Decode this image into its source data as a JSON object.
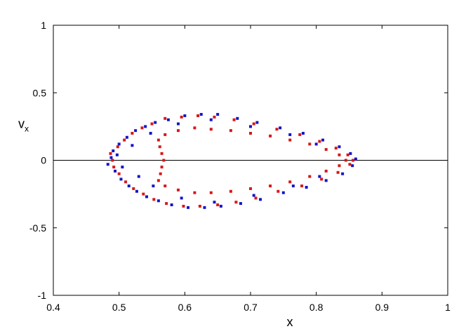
{
  "chart_data": {
    "type": "scatter",
    "title": "",
    "xlabel": "x",
    "ylabel": {
      "main": "v",
      "sub": "x"
    },
    "xlim": [
      0.4,
      1.0
    ],
    "ylim": [
      -1.0,
      1.0
    ],
    "xticks": [
      "0.4",
      "0.5",
      "0.6",
      "0.7",
      "0.8",
      "0.9",
      "1"
    ],
    "yticks": [
      "-1",
      "-0.5",
      "0",
      "0.5",
      "1"
    ],
    "grid": false,
    "reference_line": {
      "y": 0
    },
    "series": [
      {
        "color": "#1515c8",
        "points": [
          [
            0.488,
            0.02
          ],
          [
            0.483,
            -0.03
          ],
          [
            0.491,
            0.07
          ],
          [
            0.494,
            -0.08
          ],
          [
            0.5,
            0.12
          ],
          [
            0.503,
            -0.14
          ],
          [
            0.512,
            0.17
          ],
          [
            0.515,
            -0.19
          ],
          [
            0.525,
            0.22
          ],
          [
            0.527,
            -0.23
          ],
          [
            0.54,
            0.25
          ],
          [
            0.542,
            -0.27
          ],
          [
            0.555,
            0.28
          ],
          [
            0.56,
            -0.3
          ],
          [
            0.575,
            0.3
          ],
          [
            0.58,
            -0.33
          ],
          [
            0.6,
            0.33
          ],
          [
            0.605,
            -0.35
          ],
          [
            0.625,
            0.34
          ],
          [
            0.63,
            -0.35
          ],
          [
            0.65,
            0.34
          ],
          [
            0.655,
            -0.34
          ],
          [
            0.68,
            0.31
          ],
          [
            0.685,
            -0.32
          ],
          [
            0.71,
            0.28
          ],
          [
            0.715,
            -0.29
          ],
          [
            0.745,
            0.24
          ],
          [
            0.75,
            -0.24
          ],
          [
            0.78,
            0.2
          ],
          [
            0.785,
            -0.2
          ],
          [
            0.81,
            0.15
          ],
          [
            0.815,
            -0.15
          ],
          [
            0.835,
            0.1
          ],
          [
            0.84,
            -0.1
          ],
          [
            0.852,
            0.05
          ],
          [
            0.855,
            -0.04
          ],
          [
            0.86,
            0.01
          ],
          [
            0.497,
            0.04
          ],
          [
            0.505,
            -0.05
          ],
          [
            0.52,
            0.11
          ],
          [
            0.53,
            -0.12
          ],
          [
            0.548,
            0.2
          ],
          [
            0.552,
            -0.19
          ],
          [
            0.59,
            0.27
          ],
          [
            0.595,
            -0.28
          ],
          [
            0.64,
            0.3
          ],
          [
            0.645,
            -0.31
          ],
          [
            0.7,
            0.25
          ],
          [
            0.705,
            -0.26
          ],
          [
            0.76,
            0.19
          ],
          [
            0.765,
            -0.19
          ],
          [
            0.8,
            0.12
          ],
          [
            0.805,
            -0.12
          ]
        ]
      },
      {
        "color": "#d81818",
        "points": [
          [
            0.49,
            0.0
          ],
          [
            0.487,
            0.05
          ],
          [
            0.492,
            -0.05
          ],
          [
            0.498,
            0.1
          ],
          [
            0.5,
            -0.1
          ],
          [
            0.508,
            0.15
          ],
          [
            0.51,
            -0.16
          ],
          [
            0.52,
            0.2
          ],
          [
            0.522,
            -0.21
          ],
          [
            0.535,
            0.24
          ],
          [
            0.537,
            -0.25
          ],
          [
            0.55,
            0.27
          ],
          [
            0.553,
            -0.29
          ],
          [
            0.57,
            0.31
          ],
          [
            0.572,
            -0.32
          ],
          [
            0.595,
            0.32
          ],
          [
            0.598,
            -0.34
          ],
          [
            0.62,
            0.33
          ],
          [
            0.623,
            -0.34
          ],
          [
            0.645,
            0.32
          ],
          [
            0.65,
            -0.33
          ],
          [
            0.675,
            0.3
          ],
          [
            0.678,
            -0.31
          ],
          [
            0.705,
            0.27
          ],
          [
            0.708,
            -0.28
          ],
          [
            0.74,
            0.23
          ],
          [
            0.742,
            -0.23
          ],
          [
            0.775,
            0.19
          ],
          [
            0.778,
            -0.19
          ],
          [
            0.805,
            0.14
          ],
          [
            0.808,
            -0.14
          ],
          [
            0.83,
            0.09
          ],
          [
            0.833,
            -0.09
          ],
          [
            0.848,
            0.04
          ],
          [
            0.851,
            -0.03
          ],
          [
            0.856,
            0.0
          ],
          [
            0.56,
            0.15
          ],
          [
            0.562,
            0.1
          ],
          [
            0.565,
            0.05
          ],
          [
            0.568,
            0.0
          ],
          [
            0.565,
            -0.05
          ],
          [
            0.563,
            -0.1
          ],
          [
            0.56,
            -0.15
          ],
          [
            0.57,
            0.19
          ],
          [
            0.57,
            -0.19
          ],
          [
            0.59,
            0.22
          ],
          [
            0.615,
            0.24
          ],
          [
            0.64,
            0.23
          ],
          [
            0.67,
            0.22
          ],
          [
            0.7,
            0.2
          ],
          [
            0.73,
            0.18
          ],
          [
            0.76,
            0.15
          ],
          [
            0.79,
            0.12
          ],
          [
            0.815,
            0.08
          ],
          [
            0.835,
            0.04
          ],
          [
            0.845,
            0.0
          ],
          [
            0.59,
            -0.22
          ],
          [
            0.615,
            -0.24
          ],
          [
            0.64,
            -0.24
          ],
          [
            0.67,
            -0.23
          ],
          [
            0.7,
            -0.21
          ],
          [
            0.73,
            -0.19
          ],
          [
            0.76,
            -0.16
          ],
          [
            0.79,
            -0.12
          ],
          [
            0.815,
            -0.08
          ],
          [
            0.835,
            -0.04
          ]
        ]
      }
    ]
  }
}
